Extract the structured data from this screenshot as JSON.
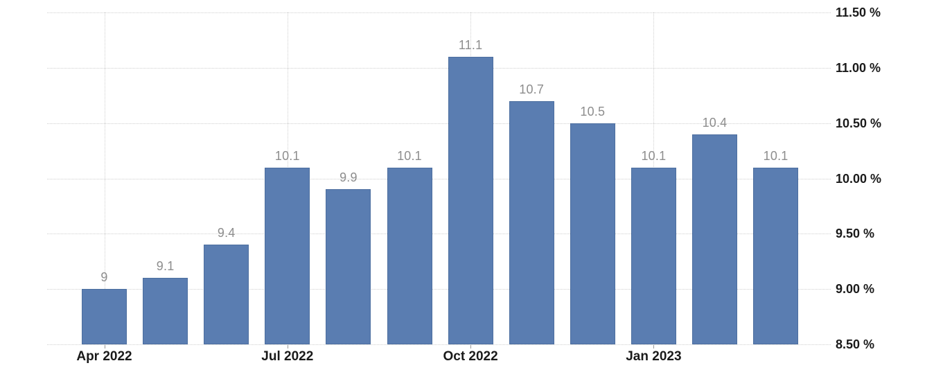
{
  "chart_data": {
    "type": "bar",
    "title": "",
    "unit": "%",
    "values": [
      9,
      9.1,
      9.4,
      10.1,
      9.9,
      10.1,
      11.1,
      10.7,
      10.5,
      10.1,
      10.4,
      10.1
    ],
    "bar_labels": [
      "9",
      "9.1",
      "9.4",
      "10.1",
      "9.9",
      "10.1",
      "11.1",
      "10.7",
      "10.5",
      "10.1",
      "10.4",
      "10.1"
    ],
    "x_ticks": [
      {
        "bar_index": 0,
        "label": "Apr 2022"
      },
      {
        "bar_index": 3,
        "label": "Jul 2022"
      },
      {
        "bar_index": 6,
        "label": "Oct 2022"
      },
      {
        "bar_index": 9,
        "label": "Jan 2023"
      }
    ],
    "y_ticks": [
      {
        "value": 11.5,
        "label": "11.50 %"
      },
      {
        "value": 11.0,
        "label": "11.00 %"
      },
      {
        "value": 10.5,
        "label": "10.50 %"
      },
      {
        "value": 10.0,
        "label": "10.00 %"
      },
      {
        "value": 9.5,
        "label": "9.50 %"
      },
      {
        "value": 9.0,
        "label": "9.00 %"
      },
      {
        "value": 8.5,
        "label": "8.50 %"
      }
    ],
    "ylim": [
      8.5,
      11.5
    ],
    "y_step": 0.5,
    "y_axis_side": "right",
    "xlabel": "",
    "ylabel": "",
    "grid": "dotted, horizontal at every y tick, vertical at every labeled x tick",
    "legend": null
  },
  "colors": {
    "background": "#ffffff",
    "bar_fill": "#5a7db1",
    "bar_border": "#4c6e9f",
    "value_label": "#8d8d8d",
    "axis_label": "#1a1a1a",
    "gridline": "#cfcfcf",
    "tick": "#9a9a9a"
  }
}
